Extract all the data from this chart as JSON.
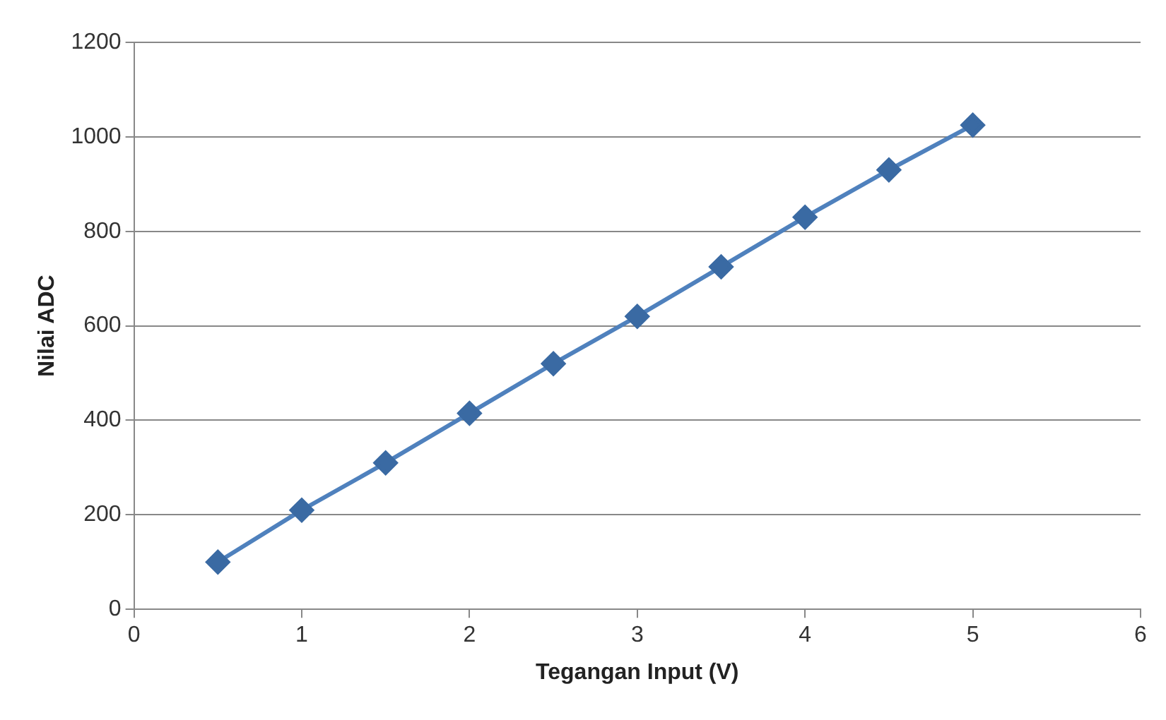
{
  "chart_data": {
    "type": "line",
    "xlabel": "Tegangan Input (V)",
    "ylabel": "Nilai ADC",
    "x": [
      0.5,
      1,
      1.5,
      2,
      2.5,
      3,
      3.5,
      4,
      4.5,
      5
    ],
    "series": [
      {
        "color": "#4f81bd",
        "values": [
          100,
          210,
          310,
          415,
          520,
          620,
          725,
          830,
          930,
          1025
        ]
      }
    ],
    "xlim": [
      0,
      6
    ],
    "xticks": [
      0,
      1,
      2,
      3,
      4,
      5,
      6
    ],
    "ylim": [
      0,
      1200
    ],
    "yticks": [
      0,
      200,
      400,
      600,
      800,
      1000,
      1200
    ],
    "grid": "y",
    "legend": false,
    "marker": "diamond",
    "line_style": "solid"
  }
}
